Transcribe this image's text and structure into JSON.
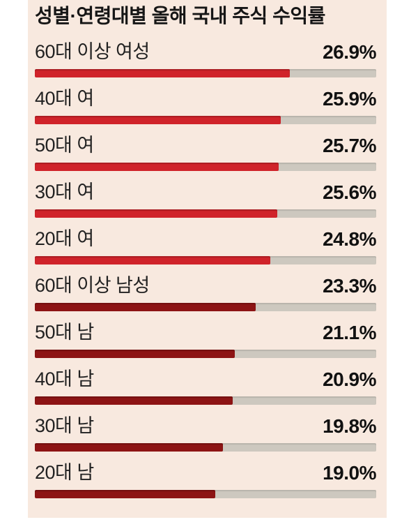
{
  "page": {
    "background_color": "#ffffff",
    "panel_background_color": "#f8e9df"
  },
  "chart_data": {
    "type": "bar",
    "orientation": "horizontal",
    "title": "성별·연령대별 올해 국내 주식 수익률",
    "unit": "%",
    "axis_max": 36,
    "grid": false,
    "legend": false,
    "track_color": "#cdc8bf",
    "female_bar_color": "#d0232a",
    "male_bar_color": "#8d1414",
    "text_color": "#161616",
    "categories": [
      "60대 이상 여성",
      "40대 여",
      "50대 여",
      "30대 여",
      "20대 여",
      "60대 이상 남성",
      "50대 남",
      "40대 남",
      "30대 남",
      "20대 남"
    ],
    "values": [
      26.9,
      25.9,
      25.7,
      25.6,
      24.8,
      23.3,
      21.1,
      20.9,
      19.8,
      19.0
    ],
    "rows": [
      {
        "label": "60대 이상 여성",
        "value": 26.9,
        "display": "26.9%",
        "group": "female"
      },
      {
        "label": "40대 여",
        "value": 25.9,
        "display": "25.9%",
        "group": "female"
      },
      {
        "label": "50대 여",
        "value": 25.7,
        "display": "25.7%",
        "group": "female"
      },
      {
        "label": "30대 여",
        "value": 25.6,
        "display": "25.6%",
        "group": "female"
      },
      {
        "label": "20대 여",
        "value": 24.8,
        "display": "24.8%",
        "group": "female"
      },
      {
        "label": "60대 이상 남성",
        "value": 23.3,
        "display": "23.3%",
        "group": "male"
      },
      {
        "label": "50대 남",
        "value": 21.1,
        "display": "21.1%",
        "group": "male"
      },
      {
        "label": "40대 남",
        "value": 20.9,
        "display": "20.9%",
        "group": "male"
      },
      {
        "label": "30대 남",
        "value": 19.8,
        "display": "19.8%",
        "group": "male"
      },
      {
        "label": "20대 남",
        "value": 19.0,
        "display": "19.0%",
        "group": "male"
      }
    ]
  }
}
